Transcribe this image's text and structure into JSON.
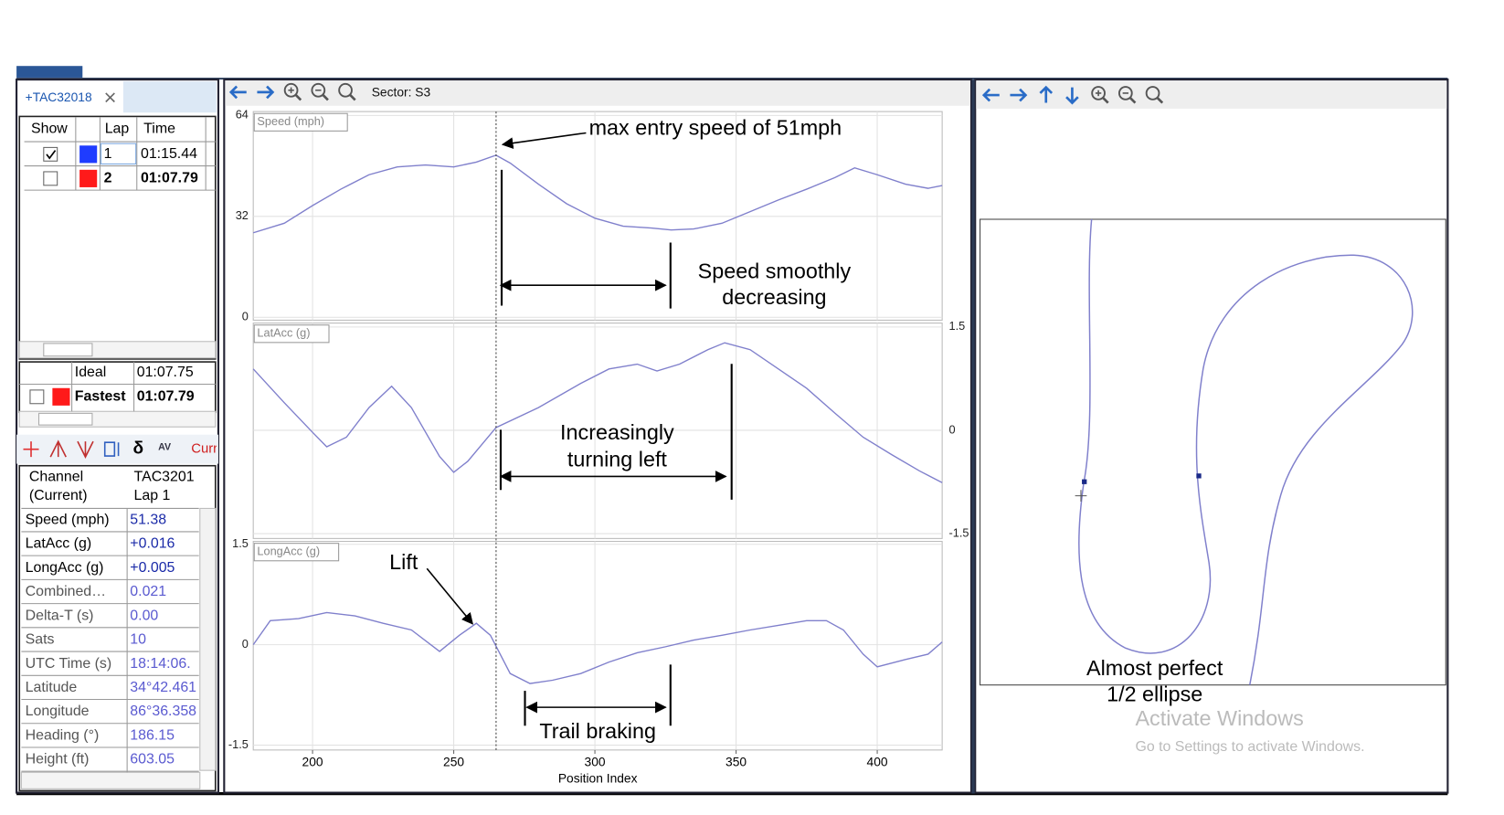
{
  "left_panel": {
    "tab": "+TAC32018",
    "laps": {
      "headers": [
        "Show",
        "Lap",
        "Time"
      ],
      "rows": [
        {
          "shown": true,
          "color": "#1f3cff",
          "lap": 1,
          "time": "01:15.44",
          "bold": false
        },
        {
          "shown": false,
          "color": "#ff1a1a",
          "lap": 2,
          "time": "01:07.79",
          "bold": true
        }
      ]
    },
    "summary": [
      {
        "label": "Ideal",
        "time": "01:07.75",
        "bold": false
      },
      {
        "label": "Fastest",
        "time": "01:07.79",
        "bold": true,
        "shown": false,
        "color": "#ff1a1a"
      }
    ],
    "channel_toolbar": {
      "icons": [
        "δ",
        "AV"
      ],
      "label": "Curr"
    },
    "channels": {
      "headers": [
        [
          "Channel",
          "(Current)"
        ],
        [
          "TAC3201",
          "Lap 1"
        ]
      ],
      "rows": [
        [
          "Speed (mph)",
          "51.38"
        ],
        [
          "LatAcc (g)",
          "+0.016"
        ],
        [
          "LongAcc (g)",
          "+0.005"
        ],
        [
          "Combined…",
          "0.021"
        ],
        [
          "Delta-T (s)",
          "0.00"
        ],
        [
          "Sats",
          "10"
        ],
        [
          "UTC Time (s)",
          "18:14:06."
        ],
        [
          "Latitude",
          "34°42.461"
        ],
        [
          "Longitude",
          "86°36.358"
        ],
        [
          "Heading (°)",
          "186.15"
        ],
        [
          "Height (ft)",
          "603.05"
        ]
      ]
    }
  },
  "center_panel": {
    "sector": "Sector: S3",
    "x_axis_label": "Position Index",
    "xlim": [
      179,
      423
    ],
    "xticks": [
      200,
      250,
      300,
      350,
      400
    ],
    "grid": true,
    "cursor_x": 265,
    "line_color": "#8080cc",
    "charts": [
      {
        "label": "Speed (mph)",
        "ylim": [
          0,
          64
        ],
        "yticks": [
          0,
          32,
          64
        ],
        "tick_side": "left",
        "x": [
          179,
          190,
          200,
          210,
          220,
          230,
          240,
          250,
          258,
          265,
          270,
          280,
          290,
          300,
          310,
          320,
          327,
          335,
          345,
          355,
          365,
          375,
          385,
          392,
          400,
          410,
          418,
          423
        ],
        "values": [
          26.8,
          29.8,
          35.4,
          40.6,
          45.2,
          47.7,
          48.3,
          47.7,
          49.2,
          51.4,
          48.9,
          42.2,
          36.0,
          31.4,
          28.9,
          28.3,
          27.7,
          28.0,
          29.8,
          33.5,
          37.2,
          40.6,
          44.3,
          47.4,
          45.2,
          42.2,
          40.9,
          41.8
        ]
      },
      {
        "label": "LatAcc (g)",
        "ylim": [
          -1.5,
          1.5
        ],
        "yticks": [
          -1.5,
          0,
          1.5
        ],
        "tick_side": "right",
        "x": [
          179,
          190,
          200,
          205,
          212,
          220,
          228,
          235,
          245,
          250,
          255,
          265,
          280,
          295,
          305,
          315,
          322,
          330,
          340,
          346,
          355,
          365,
          375,
          385,
          395,
          405,
          415,
          423
        ],
        "values": [
          0.89,
          0.4,
          -0.03,
          -0.24,
          -0.1,
          0.33,
          0.64,
          0.33,
          -0.38,
          -0.61,
          -0.45,
          0.04,
          0.33,
          0.68,
          0.89,
          0.96,
          0.86,
          0.96,
          1.17,
          1.27,
          1.17,
          0.89,
          0.61,
          0.25,
          -0.1,
          -0.35,
          -0.59,
          -0.76
        ]
      },
      {
        "label": "LongAcc (g)",
        "ylim": [
          -1.5,
          1.5
        ],
        "yticks": [
          -1.5,
          0,
          1.5
        ],
        "tick_side": "left",
        "x": [
          179,
          185,
          195,
          205,
          215,
          225,
          235,
          245,
          252,
          258,
          263,
          270,
          277,
          285,
          295,
          305,
          315,
          325,
          335,
          345,
          355,
          365,
          375,
          382,
          388,
          395,
          400,
          410,
          418,
          423
        ],
        "values": [
          0,
          0.36,
          0.39,
          0.48,
          0.43,
          0.32,
          0.22,
          -0.1,
          0.14,
          0.32,
          0.14,
          -0.43,
          -0.58,
          -0.53,
          -0.43,
          -0.26,
          -0.12,
          -0.03,
          0.07,
          0.14,
          0.22,
          0.29,
          0.36,
          0.36,
          0.22,
          -0.14,
          -0.33,
          -0.22,
          -0.14,
          0.04
        ]
      }
    ],
    "annotations": {
      "max_speed": "max entry speed of 51mph",
      "speed_decreasing": [
        "Speed smoothly",
        "decreasing"
      ],
      "turning_left": [
        "Increasingly",
        "turning left"
      ],
      "lift": "Lift",
      "trail_braking": "Trail braking"
    }
  },
  "right_panel": {
    "annotation": [
      "Almost perfect",
      "1/2 ellipse"
    ]
  },
  "watermark": {
    "title": "Activate Windows",
    "subtitle": "Go to Settings to activate Windows."
  }
}
